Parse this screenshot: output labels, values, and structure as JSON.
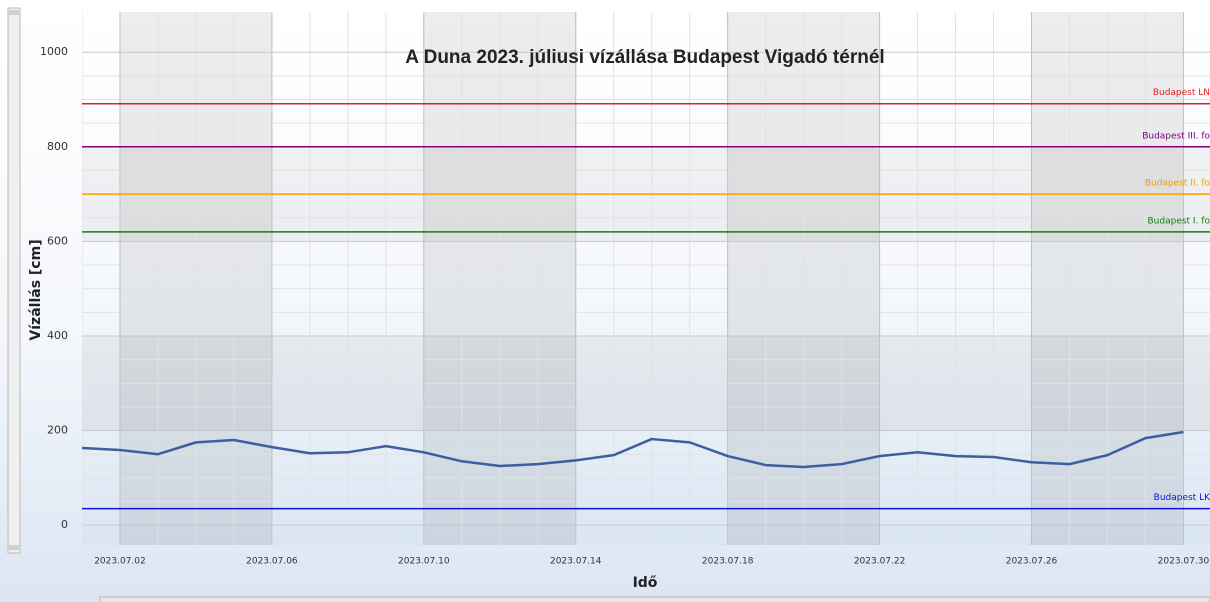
{
  "chart_data": {
    "type": "line",
    "title": "A Duna 2023. júliusi vízállása Budapest Vigadó térnél",
    "x_label": "Idő",
    "y_label": "Vízállás [cm]",
    "x": [
      "2023.07.01",
      "2023.07.02",
      "2023.07.03",
      "2023.07.04",
      "2023.07.05",
      "2023.07.06",
      "2023.07.07",
      "2023.07.08",
      "2023.07.09",
      "2023.07.10",
      "2023.07.11",
      "2023.07.12",
      "2023.07.13",
      "2023.07.14",
      "2023.07.15",
      "2023.07.16",
      "2023.07.17",
      "2023.07.18",
      "2023.07.19",
      "2023.07.20",
      "2023.07.21",
      "2023.07.22",
      "2023.07.23",
      "2023.07.24",
      "2023.07.25",
      "2023.07.26",
      "2023.07.27",
      "2023.07.28",
      "2023.07.29",
      "2023.07.30"
    ],
    "series": [
      {
        "color": "#3d5fa0",
        "values": [
          163,
          159,
          150,
          175,
          180,
          165,
          152,
          154,
          167,
          154,
          135,
          125,
          129,
          137,
          148,
          182,
          175,
          146,
          127,
          123,
          129,
          146,
          154,
          146,
          144,
          133,
          129,
          148,
          184,
          197
        ]
      }
    ],
    "xlim": [
      "2023.07.01",
      "2023.07.31"
    ],
    "xticks": [
      "2023.07.02",
      "2023.07.06",
      "2023.07.10",
      "2023.07.14",
      "2023.07.18",
      "2023.07.22",
      "2023.07.26",
      "2023.07.30"
    ],
    "ylim": [
      -42,
      1085
    ],
    "yticks": [
      0,
      200,
      400,
      600,
      800,
      1000
    ],
    "grid": true,
    "reference_lines": [
      {
        "label": "Budapest LN",
        "value": 891,
        "color": "#e02020"
      },
      {
        "label": "Budapest III. fo",
        "value": 800,
        "color": "#800080"
      },
      {
        "label": "Budapest II. fo",
        "value": 700,
        "color": "#f5a000"
      },
      {
        "label": "Budapest I. fo",
        "value": 620,
        "color": "#108010"
      },
      {
        "label": "Budapest LK",
        "value": 35,
        "color": "#1010e0"
      }
    ]
  }
}
